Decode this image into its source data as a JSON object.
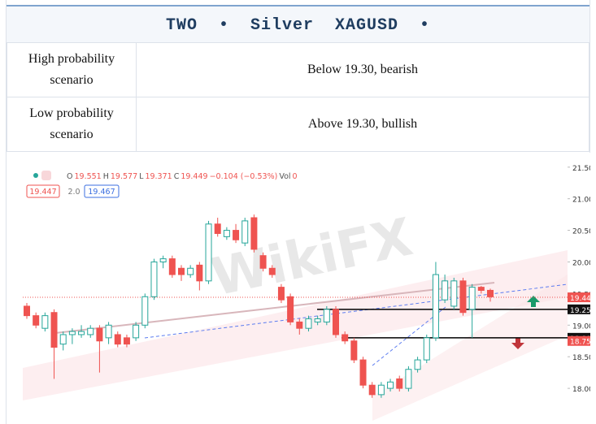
{
  "header": {
    "title": "TWO  •  Silver  XAGUSD  •"
  },
  "table": {
    "rows": [
      [
        "High probability scenario",
        "Below 19.30, bearish"
      ],
      [
        "Low probability scenario",
        "Above 19.30, bullish"
      ]
    ]
  },
  "chart": {
    "type": "candlestick",
    "watermark": "WikiFX",
    "ohlc": {
      "o_label": "O",
      "o": 19.551,
      "h_label": "H",
      "h": 19.577,
      "l_label": "L",
      "l": 19.371,
      "c_label": "C",
      "c": 19.449,
      "change": "−0.104 (−0.53%)",
      "vol_label": "Vol",
      "vol": 0
    },
    "boxes": [
      "19.447",
      "2.0",
      "19.467"
    ],
    "ylim": [
      17.5,
      21.6
    ],
    "yticks": [
      {
        "value": 21.5,
        "label": "21.50"
      },
      {
        "value": 21,
        "label": "21.00"
      },
      {
        "value": 20.5,
        "label": "20.50"
      },
      {
        "value": 20,
        "label": "20.00"
      },
      {
        "value": 19.5,
        "label": "19.50"
      },
      {
        "value": 19,
        "label": "19.00"
      },
      {
        "value": 18.5,
        "label": "18.50"
      },
      {
        "value": 18,
        "label": "18.00"
      }
    ],
    "price_labels": [
      {
        "value": 19.44,
        "label": "19.44",
        "color": "#ef5350"
      },
      {
        "value": 19.25,
        "label": "19.25",
        "color": "#111111"
      },
      {
        "value": 18.8,
        "label": "18.80",
        "color": "#111111"
      },
      {
        "value": 18.75,
        "label": "18.75",
        "color": "#ef5350"
      }
    ],
    "levels": [
      19.25,
      18.8
    ],
    "up_color": "#26a69a",
    "down_color": "#ef5350",
    "candles": [
      [
        19.3,
        19.35,
        19.1,
        19.15
      ],
      [
        19.15,
        19.2,
        18.95,
        19.0
      ],
      [
        18.95,
        19.2,
        18.9,
        19.15
      ],
      [
        19.2,
        19.25,
        18.15,
        18.65
      ],
      [
        18.7,
        18.9,
        18.6,
        18.85
      ],
      [
        18.85,
        18.95,
        18.7,
        18.9
      ],
      [
        18.85,
        19.0,
        18.8,
        18.9
      ],
      [
        18.85,
        19.0,
        18.8,
        18.95
      ],
      [
        18.95,
        19.0,
        18.25,
        18.75
      ],
      [
        18.8,
        19.05,
        18.7,
        19.0
      ],
      [
        18.85,
        18.9,
        18.65,
        18.7
      ],
      [
        18.8,
        18.85,
        18.65,
        18.7
      ],
      [
        18.8,
        19.05,
        18.75,
        19.0
      ],
      [
        19.0,
        19.5,
        18.95,
        19.45
      ],
      [
        19.45,
        20.05,
        19.4,
        20.0
      ],
      [
        20.0,
        20.1,
        19.9,
        20.05
      ],
      [
        20.05,
        20.1,
        19.75,
        19.8
      ],
      [
        19.9,
        19.95,
        19.7,
        19.8
      ],
      [
        19.8,
        19.95,
        19.75,
        19.9
      ],
      [
        19.95,
        20.0,
        19.55,
        19.7
      ],
      [
        19.7,
        20.65,
        19.65,
        20.6
      ],
      [
        20.6,
        20.7,
        20.4,
        20.45
      ],
      [
        20.4,
        20.55,
        20.35,
        20.5
      ],
      [
        20.5,
        20.6,
        20.3,
        20.35
      ],
      [
        20.3,
        20.7,
        20.25,
        20.65
      ],
      [
        20.7,
        20.75,
        20.15,
        20.2
      ],
      [
        20.1,
        20.15,
        19.85,
        19.9
      ],
      [
        19.9,
        19.95,
        19.75,
        19.8
      ],
      [
        19.6,
        19.65,
        19.35,
        19.4
      ],
      [
        19.45,
        19.5,
        19.0,
        19.05
      ],
      [
        19.05,
        19.1,
        18.85,
        18.95
      ],
      [
        18.95,
        19.15,
        18.9,
        19.1
      ],
      [
        19.05,
        19.15,
        19.0,
        19.1
      ],
      [
        19.05,
        19.3,
        19.0,
        19.25
      ],
      [
        19.25,
        19.3,
        18.8,
        18.85
      ],
      [
        18.85,
        18.9,
        18.7,
        18.75
      ],
      [
        18.75,
        18.8,
        18.4,
        18.45
      ],
      [
        18.45,
        18.5,
        18.0,
        18.05
      ],
      [
        18.05,
        18.1,
        17.85,
        17.9
      ],
      [
        17.9,
        18.1,
        17.85,
        18.05
      ],
      [
        18.0,
        18.15,
        17.95,
        18.1
      ],
      [
        18.15,
        18.2,
        17.95,
        18.0
      ],
      [
        18.0,
        18.35,
        17.95,
        18.3
      ],
      [
        18.3,
        18.5,
        18.25,
        18.45
      ],
      [
        18.45,
        18.85,
        18.4,
        18.8
      ],
      [
        18.8,
        20.0,
        18.75,
        19.8
      ],
      [
        19.4,
        19.8,
        19.35,
        19.7
      ],
      [
        19.3,
        19.75,
        19.25,
        19.7
      ],
      [
        19.7,
        19.75,
        19.15,
        19.2
      ],
      [
        19.25,
        19.65,
        18.8,
        19.6
      ],
      [
        19.6,
        19.62,
        19.5,
        19.55
      ],
      [
        19.551,
        19.577,
        19.371,
        19.449
      ]
    ]
  }
}
